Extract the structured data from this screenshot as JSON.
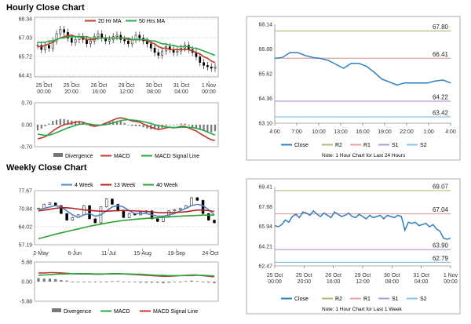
{
  "sections": {
    "hourly_title": "Hourly Close Chart",
    "weekly_title": "Weekly Close Chart"
  },
  "colors": {
    "ma_short": "#c0392b",
    "ma_long": "#27a845",
    "macd": "#c0392b",
    "signal": "#27a845",
    "close": "#2f7fc1",
    "r2": "#a9c07a",
    "r1": "#e9a0a0",
    "s1": "#b49ad2",
    "s2": "#86c6e6",
    "week4": "#4f86c6",
    "week13": "#b22222",
    "week40": "#2ca02c",
    "divergence": "#777777"
  },
  "chart_data": [
    {
      "id": "hourly_price",
      "type": "line",
      "ylim": [
        64.41,
        68.34
      ],
      "yticks": [
        "68.34",
        "67.03",
        "65.72",
        "64.41"
      ],
      "xticks": [
        [
          "25 Oct",
          "00:00"
        ],
        [
          "25 Oct",
          "20:00"
        ],
        [
          "26 Oct",
          "16:00"
        ],
        [
          "29 Oct",
          "12:00"
        ],
        [
          "30 Oct",
          "08:00"
        ],
        [
          "31 Oct",
          "04:00"
        ],
        [
          "1 Nov",
          "00:00"
        ]
      ],
      "legend": [
        "20 Hr MA",
        "50 Hrs MA"
      ],
      "closes": [
        66.5,
        66.2,
        66.5,
        66.3,
        66.8,
        67.3,
        67.6,
        67.4,
        67.0,
        66.7,
        66.9,
        67.1,
        66.9,
        66.6,
        66.8,
        67.1,
        67.3,
        67.0,
        66.8,
        66.9,
        67.1,
        67.2,
        66.9,
        66.8,
        66.6,
        66.9,
        67.2,
        67.0,
        66.8,
        66.6,
        66.3,
        66.0,
        65.8,
        66.1,
        66.4,
        66.2,
        66.0,
        66.1,
        66.3,
        66.5,
        66.2,
        66.0,
        65.7,
        65.3,
        65.1,
        65.0,
        64.9,
        65.0
      ],
      "series": [
        {
          "name": "20 Hr MA",
          "values": [
            66.4,
            66.4,
            66.5,
            66.6,
            66.7,
            66.9,
            67.0,
            67.1,
            67.2,
            67.2,
            67.1,
            67.1,
            67.0,
            66.9,
            66.9,
            66.9,
            67.0,
            67.0,
            67.0,
            67.0,
            67.0,
            67.0,
            67.0,
            67.0,
            66.9,
            66.9,
            66.9,
            66.9,
            66.9,
            66.8,
            66.7,
            66.6,
            66.4,
            66.3,
            66.3,
            66.2,
            66.2,
            66.2,
            66.2,
            66.2,
            66.2,
            66.1,
            66.0,
            65.9,
            65.7,
            65.6,
            65.4,
            65.3
          ]
        },
        {
          "name": "50 Hrs MA",
          "values": [
            66.7,
            66.7,
            66.7,
            66.8,
            66.8,
            66.9,
            67.0,
            67.0,
            67.1,
            67.1,
            67.1,
            67.1,
            67.1,
            67.1,
            67.0,
            67.0,
            67.0,
            67.0,
            67.0,
            67.0,
            67.0,
            67.0,
            67.0,
            67.0,
            67.0,
            66.9,
            66.9,
            66.9,
            66.9,
            66.9,
            66.8,
            66.8,
            66.7,
            66.6,
            66.6,
            66.5,
            66.5,
            66.4,
            66.4,
            66.4,
            66.4,
            66.3,
            66.3,
            66.2,
            66.1,
            66.0,
            65.9,
            65.8
          ]
        }
      ]
    },
    {
      "id": "hourly_macd",
      "type": "line",
      "ylim": [
        -0.7,
        0.7
      ],
      "yticks": [
        "0.70",
        "0.00",
        "-0.70"
      ],
      "legend": [
        "Divergence",
        "MACD",
        "MACD Signal Line"
      ],
      "series": [
        {
          "name": "MACD",
          "values": [
            -0.45,
            -0.42,
            -0.38,
            -0.3,
            -0.2,
            -0.12,
            -0.05,
            0.0,
            0.03,
            0.05,
            0.08,
            0.1,
            0.08,
            0.03,
            -0.02,
            -0.05,
            -0.03,
            0.0,
            0.05,
            0.1,
            0.15,
            0.2,
            0.22,
            0.2,
            0.16,
            0.12,
            0.1,
            0.08,
            0.03,
            -0.03,
            -0.08,
            -0.12,
            -0.15,
            -0.13,
            -0.1,
            -0.08,
            -0.1,
            -0.08,
            -0.05,
            -0.05,
            -0.1,
            -0.15,
            -0.2,
            -0.28,
            -0.35,
            -0.42,
            -0.48,
            -0.5
          ]
        },
        {
          "name": "MACD Signal Line",
          "values": [
            -0.3,
            -0.32,
            -0.34,
            -0.33,
            -0.3,
            -0.25,
            -0.2,
            -0.15,
            -0.1,
            -0.06,
            -0.02,
            0.01,
            0.03,
            0.03,
            0.02,
            0.0,
            -0.01,
            -0.01,
            0.0,
            0.03,
            0.06,
            0.1,
            0.13,
            0.15,
            0.16,
            0.15,
            0.14,
            0.12,
            0.1,
            0.07,
            0.04,
            0.0,
            -0.03,
            -0.05,
            -0.07,
            -0.08,
            -0.09,
            -0.09,
            -0.08,
            -0.08,
            -0.08,
            -0.09,
            -0.11,
            -0.14,
            -0.18,
            -0.23,
            -0.28,
            -0.33
          ]
        }
      ]
    },
    {
      "id": "hourly_levels",
      "type": "line",
      "ylim": [
        63.1,
        68.14
      ],
      "yticks": [
        "68.14",
        "66.88",
        "65.62",
        "64.36",
        "63.10"
      ],
      "xticks": [
        "4:00",
        "7:00",
        "10:00",
        "13:00",
        "16:00",
        "19:00",
        "22:00",
        "1:00",
        "4:00"
      ],
      "levels": [
        {
          "name": "R2",
          "value": 67.8,
          "label": "67.80"
        },
        {
          "name": "R1",
          "value": 66.41,
          "label": "66.41"
        },
        {
          "name": "S1",
          "value": 64.22,
          "label": "64.22"
        },
        {
          "name": "S2",
          "value": 63.42,
          "label": "63.42"
        }
      ],
      "legend": [
        "Close",
        "R2",
        "R1",
        "S1",
        "S2"
      ],
      "note": "Note: 1 Hour Chart for Last 24 Hours",
      "series": [
        {
          "name": "Close",
          "values": [
            66.4,
            66.45,
            66.7,
            66.7,
            66.55,
            66.45,
            66.4,
            66.3,
            66.1,
            65.9,
            66.15,
            66.15,
            66.0,
            65.7,
            65.35,
            65.2,
            65.05,
            65.15,
            65.15,
            65.15,
            65.15,
            65.25,
            65.3,
            65.15
          ]
        }
      ]
    },
    {
      "id": "weekly_price",
      "type": "line",
      "ylim": [
        57.19,
        77.67
      ],
      "yticks": [
        "77.67",
        "70.84",
        "64.02",
        "57.19"
      ],
      "xticks": [
        "2-May",
        "6-Jun",
        "11-Jul",
        "15-Aug",
        "19-Sep",
        "24-Oct"
      ],
      "legend": [
        "4 Week",
        "13 Week",
        "40 Week"
      ],
      "closes": [
        71.0,
        72.5,
        73.0,
        72.0,
        69.0,
        66.5,
        67.5,
        68.5,
        72.0,
        67.0,
        65.5,
        71.5,
        74.5,
        72.5,
        70.0,
        67.5,
        69.0,
        68.5,
        69.5,
        70.0,
        67.0,
        66.0,
        68.0,
        70.0,
        70.5,
        71.0,
        72.0,
        75.0,
        74.0,
        69.0,
        66.5,
        65.5
      ],
      "series": [
        {
          "name": "4 Week",
          "values": [
            70.5,
            71.0,
            71.5,
            72.0,
            71.5,
            70.0,
            68.5,
            67.5,
            68.5,
            69.0,
            68.0,
            68.5,
            70.0,
            71.5,
            72.0,
            71.5,
            70.0,
            69.0,
            69.0,
            69.0,
            68.5,
            68.0,
            68.0,
            68.5,
            69.0,
            70.0,
            71.0,
            72.0,
            72.5,
            72.0,
            70.5,
            68.5
          ]
        },
        {
          "name": "13 Week",
          "values": [
            70.0,
            70.3,
            70.6,
            71.0,
            71.2,
            71.2,
            71.0,
            70.7,
            70.4,
            70.2,
            70.0,
            69.9,
            69.9,
            70.0,
            70.1,
            70.2,
            70.1,
            70.0,
            69.9,
            69.8,
            69.6,
            69.4,
            69.3,
            69.3,
            69.4,
            69.5,
            69.7,
            70.0,
            70.3,
            70.3,
            70.1,
            69.8
          ]
        },
        {
          "name": "40 Week",
          "values": [
            59.5,
            60.0,
            60.6,
            61.2,
            61.7,
            62.2,
            62.7,
            63.2,
            63.7,
            64.2,
            64.6,
            65.0,
            65.4,
            65.8,
            66.1,
            66.4,
            66.6,
            66.8,
            67.0,
            67.2,
            67.3,
            67.4,
            67.6,
            67.7,
            67.9,
            68.0,
            68.1,
            68.2,
            68.3,
            68.4,
            68.4,
            68.4
          ]
        }
      ]
    },
    {
      "id": "weekly_macd",
      "type": "line",
      "ylim": [
        -5.88,
        5.88
      ],
      "yticks": [
        "5.88",
        "0.00",
        "-5.88"
      ],
      "legend": [
        "Divergence",
        "MACD",
        "MACD Signal Line"
      ],
      "series": [
        {
          "name": "MACD",
          "values": [
            2.6,
            2.6,
            2.7,
            2.7,
            2.6,
            2.5,
            2.4,
            2.3,
            2.3,
            2.3,
            2.2,
            2.2,
            2.3,
            2.4,
            2.4,
            2.3,
            2.2,
            2.1,
            2.0,
            1.9,
            1.8,
            1.7,
            1.6,
            1.6,
            1.7,
            1.8,
            1.9,
            2.0,
            2.0,
            1.8,
            1.6,
            1.4
          ]
        },
        {
          "name": "MACD Signal Line",
          "values": [
            1.9,
            2.0,
            2.1,
            2.2,
            2.3,
            2.3,
            2.4,
            2.4,
            2.4,
            2.4,
            2.3,
            2.3,
            2.3,
            2.3,
            2.3,
            2.3,
            2.3,
            2.2,
            2.2,
            2.1,
            2.0,
            1.9,
            1.9,
            1.8,
            1.8,
            1.8,
            1.8,
            1.8,
            1.9,
            1.9,
            1.8,
            1.7
          ]
        }
      ]
    },
    {
      "id": "weekly_levels",
      "type": "line",
      "ylim": [
        62.47,
        69.41
      ],
      "yticks": [
        "69.41",
        "67.68",
        "65.94",
        "64.21",
        "62.47"
      ],
      "xticks": [
        [
          "25 Oct",
          "00:00"
        ],
        [
          "25 Oct",
          "20:00"
        ],
        [
          "26 Oct",
          "16:00"
        ],
        [
          "29 Oct",
          "12:00"
        ],
        [
          "30 Oct",
          "08:00"
        ],
        [
          "31 Oct",
          "04:00"
        ],
        [
          "1 Nov",
          "00:00"
        ]
      ],
      "levels": [
        {
          "name": "R2",
          "value": 69.07,
          "label": "69.07"
        },
        {
          "name": "R1",
          "value": 67.04,
          "label": "67.04"
        },
        {
          "name": "S1",
          "value": 63.9,
          "label": "63.90"
        },
        {
          "name": "S2",
          "value": 62.79,
          "label": "62.79"
        }
      ],
      "legend": [
        "Close",
        "R2",
        "R1",
        "S1",
        "S2"
      ],
      "note": "Note: 1 Hour Chart for Last 1 Week",
      "series": [
        {
          "name": "Close",
          "values": [
            66.0,
            65.9,
            66.1,
            66.5,
            66.3,
            66.8,
            67.0,
            66.7,
            67.2,
            67.1,
            66.9,
            67.3,
            67.0,
            66.8,
            67.1,
            66.9,
            66.7,
            67.2,
            67.0,
            66.8,
            66.9,
            67.1,
            66.8,
            66.7,
            67.0,
            66.8,
            66.6,
            66.9,
            66.7,
            66.8,
            66.9,
            66.6,
            66.9,
            66.8,
            66.7,
            66.9,
            66.8,
            65.6,
            66.3,
            66.2,
            66.3,
            66.0,
            66.1,
            66.2,
            65.9,
            66.1,
            65.7,
            65.5,
            64.9,
            64.8,
            64.9
          ]
        }
      ]
    }
  ]
}
